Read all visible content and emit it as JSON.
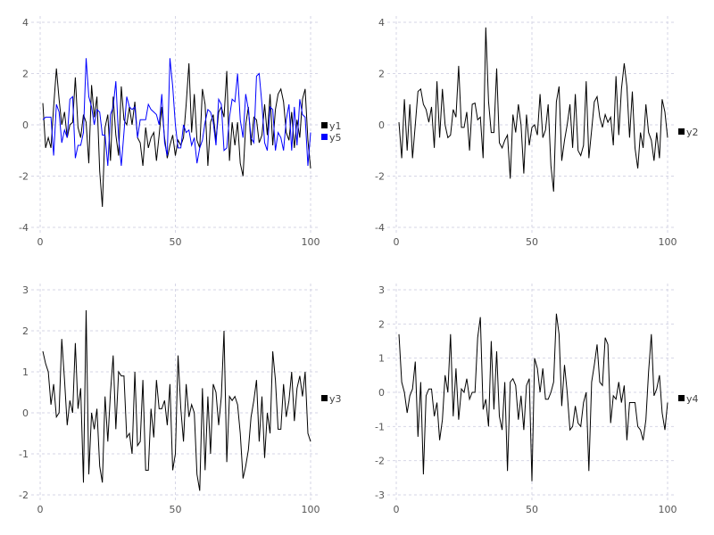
{
  "chart_data": [
    {
      "type": "line",
      "xlim": [
        0,
        100
      ],
      "ylim": [
        -4,
        4
      ],
      "xticks": [
        0,
        50,
        100
      ],
      "yticks": [
        -4,
        -2,
        0,
        2,
        4
      ],
      "grid": true,
      "legend_placement": "right",
      "series": [
        {
          "name": "y1",
          "color": "#000000",
          "values": [
            0.85,
            -0.9,
            -0.5,
            -0.9,
            0.7,
            2.2,
            1.0,
            0.0,
            0.5,
            -0.5,
            0.0,
            0.1,
            1.85,
            -0.1,
            -0.5,
            0.4,
            0.1,
            -1.5,
            1.55,
            0.3,
            1.1,
            -1.8,
            -3.2,
            -0.1,
            0.4,
            -1.4,
            1.1,
            -0.4,
            -1.2,
            1.5,
            0.2,
            0.0,
            0.7,
            0.0,
            0.9,
            -0.5,
            -0.7,
            -1.6,
            -0.1,
            -0.9,
            -0.5,
            -0.3,
            -1.4,
            -0.4,
            0.7,
            -0.5,
            -1.3,
            -0.8,
            -0.4,
            -1.2,
            -0.6,
            -0.8,
            -0.5,
            0.8,
            2.4,
            -0.3,
            1.2,
            -0.6,
            -0.9,
            1.4,
            0.8,
            -1.6,
            0.1,
            0.4,
            -0.6,
            0.5,
            0.7,
            0.3,
            2.1,
            -1.4,
            0.1,
            -0.8,
            0.1,
            -1.5,
            -2.0,
            0.0,
            0.7,
            -0.8,
            0.3,
            0.2,
            -0.7,
            -0.4,
            0.8,
            -0.4,
            1.2,
            -0.8,
            0.6,
            1.2,
            1.4,
            0.9,
            -0.3,
            -0.6,
            0.5,
            -0.9,
            0.2,
            -0.5,
            1.0,
            1.4,
            -0.6,
            -1.7
          ]
        },
        {
          "name": "y5",
          "color": "#0000ff",
          "values": [
            0.2,
            0.3,
            0.3,
            0.3,
            -1.2,
            0.8,
            0.5,
            -0.7,
            -0.2,
            -0.5,
            1.0,
            1.1,
            -1.3,
            -0.8,
            -0.8,
            -0.3,
            2.6,
            1.1,
            0.7,
            0.0,
            0.6,
            0.5,
            -0.4,
            -0.4,
            -1.6,
            0.4,
            0.7,
            1.7,
            -0.5,
            -1.6,
            -0.3,
            1.1,
            0.7,
            0.6,
            0.7,
            -0.5,
            0.2,
            0.2,
            0.2,
            0.8,
            0.6,
            0.5,
            0.4,
            0.0,
            1.2,
            -0.7,
            -1.2,
            2.6,
            1.5,
            0.0,
            -0.9,
            -0.9,
            0.0,
            -0.3,
            -0.2,
            -0.8,
            -0.5,
            -1.5,
            -0.9,
            -0.6,
            0.1,
            0.6,
            0.5,
            0.1,
            -0.8,
            1.0,
            0.8,
            -1.0,
            -0.9,
            0.3,
            1.0,
            0.9,
            2.0,
            0.2,
            -0.5,
            1.2,
            0.6,
            -0.5,
            -0.7,
            1.9,
            2.0,
            0.8,
            -0.7,
            -1.0,
            0.7,
            0.6,
            -1.0,
            -0.3,
            -0.5,
            -1.0,
            0.2,
            0.8,
            -1.0,
            0.7,
            -0.8,
            1.0,
            0.4,
            0.3,
            -1.6,
            -0.3
          ]
        }
      ]
    },
    {
      "type": "line",
      "xlim": [
        0,
        100
      ],
      "ylim": [
        -4,
        4
      ],
      "xticks": [
        0,
        50,
        100
      ],
      "yticks": [
        -4,
        -2,
        0,
        2,
        4
      ],
      "grid": true,
      "legend_placement": "right",
      "series": [
        {
          "name": "y2",
          "color": "#000000",
          "values": [
            0.1,
            -1.3,
            1.0,
            -1.0,
            0.8,
            -1.3,
            0.0,
            1.3,
            1.4,
            0.8,
            0.6,
            0.1,
            0.7,
            -0.9,
            1.7,
            -0.5,
            1.4,
            0.0,
            -0.5,
            -0.4,
            0.6,
            0.3,
            2.3,
            -0.1,
            -0.1,
            0.5,
            -1.0,
            0.8,
            0.85,
            0.2,
            0.3,
            -1.3,
            3.8,
            0.9,
            -0.3,
            -0.3,
            2.2,
            -0.7,
            -0.9,
            -0.6,
            -0.4,
            -2.1,
            0.4,
            -0.3,
            0.8,
            0.0,
            -1.9,
            0.4,
            -0.8,
            -0.1,
            0.0,
            -0.4,
            1.2,
            -0.5,
            -0.2,
            0.8,
            -1.6,
            -2.6,
            0.9,
            1.5,
            -1.4,
            -0.6,
            0.0,
            0.8,
            -0.9,
            1.2,
            -1.0,
            -1.2,
            -0.8,
            1.7,
            -1.3,
            -0.2,
            0.9,
            1.1,
            0.3,
            -0.1,
            0.4,
            0.1,
            0.3,
            -0.8,
            1.9,
            -0.4,
            1.4,
            2.4,
            1.5,
            -0.5,
            1.3,
            -0.9,
            -1.7,
            -0.3,
            -0.9,
            0.8,
            -0.3,
            -0.6,
            -1.4,
            -0.3,
            -1.3,
            1.0,
            0.5,
            -0.5
          ]
        }
      ]
    },
    {
      "type": "line",
      "xlim": [
        0,
        100
      ],
      "ylim": [
        -2.2,
        3.2
      ],
      "xticks": [
        0,
        50,
        100
      ],
      "yticks": [
        -2,
        -1,
        0,
        1,
        2,
        3
      ],
      "grid": true,
      "legend_placement": "right",
      "series": [
        {
          "name": "y3",
          "color": "#000000",
          "values": [
            1.5,
            1.2,
            1.0,
            0.2,
            0.7,
            -0.1,
            0.0,
            1.8,
            0.8,
            -0.3,
            0.3,
            0.0,
            1.7,
            0.1,
            0.6,
            -1.7,
            2.5,
            -1.5,
            0.0,
            -0.4,
            0.1,
            -1.3,
            -1.7,
            0.4,
            -0.7,
            0.5,
            1.4,
            -0.4,
            1.0,
            0.9,
            0.9,
            -0.6,
            -0.5,
            -1.0,
            1.0,
            -0.8,
            -0.7,
            0.8,
            -1.4,
            -1.4,
            0.1,
            -0.6,
            0.8,
            0.1,
            0.1,
            0.3,
            -0.3,
            0.7,
            -1.4,
            -1.0,
            1.4,
            0.1,
            -0.7,
            0.7,
            -0.1,
            0.2,
            0.0,
            -1.5,
            -1.9,
            0.6,
            -1.4,
            0.4,
            -1.0,
            0.7,
            0.5,
            -0.3,
            0.4,
            2.0,
            -1.2,
            0.4,
            0.3,
            0.4,
            0.2,
            -0.5,
            -1.6,
            -1.3,
            -0.9,
            -0.1,
            0.3,
            0.8,
            -0.7,
            0.4,
            -1.1,
            0.0,
            -0.5,
            1.5,
            0.8,
            -0.4,
            -0.4,
            0.7,
            -0.1,
            0.3,
            1.0,
            -0.2,
            0.6,
            0.9,
            0.4,
            1.0,
            -0.5,
            -0.7
          ]
        }
      ]
    },
    {
      "type": "line",
      "xlim": [
        0,
        100
      ],
      "ylim": [
        -3.2,
        3.2
      ],
      "xticks": [
        0,
        50,
        100
      ],
      "yticks": [
        -3,
        -2,
        -1,
        0,
        1,
        2,
        3
      ],
      "grid": true,
      "legend_placement": "right",
      "series": [
        {
          "name": "y4",
          "color": "#000000",
          "values": [
            1.7,
            0.3,
            0.0,
            -0.6,
            -0.1,
            0.1,
            0.9,
            -1.3,
            0.3,
            -2.4,
            -0.1,
            0.1,
            0.1,
            -0.7,
            -0.3,
            -1.4,
            -0.8,
            0.5,
            0.0,
            1.7,
            -0.7,
            0.7,
            -0.8,
            0.1,
            0.0,
            0.4,
            -0.2,
            0.0,
            0.0,
            1.6,
            2.2,
            -0.5,
            -0.2,
            -1.0,
            1.5,
            -0.5,
            1.2,
            -0.7,
            -1.1,
            0.3,
            -2.3,
            0.3,
            0.4,
            0.2,
            -0.8,
            -0.1,
            -1.1,
            0.2,
            0.4,
            -2.6,
            1.0,
            0.7,
            0.0,
            0.7,
            -0.2,
            -0.2,
            0.0,
            0.3,
            2.3,
            1.7,
            -0.4,
            0.8,
            0.0,
            -1.1,
            -1.0,
            -0.4,
            -0.9,
            -1.0,
            -0.3,
            0.0,
            -2.3,
            0.3,
            0.8,
            1.4,
            0.3,
            0.2,
            1.6,
            1.4,
            -0.9,
            -0.1,
            -0.2,
            0.3,
            -0.3,
            0.2,
            -1.4,
            -0.3,
            -0.3,
            -0.3,
            -1.0,
            -1.1,
            -1.4,
            -0.8,
            0.6,
            1.7,
            -0.1,
            0.1,
            0.5,
            -0.6,
            -1.1,
            -0.3
          ]
        }
      ]
    }
  ]
}
